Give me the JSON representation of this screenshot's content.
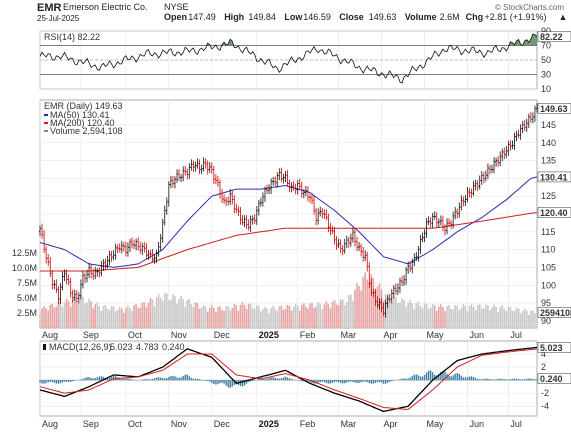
{
  "header": {
    "symbol": "EMR",
    "company": "Emerson Electric Co.",
    "exchange": "NYSE",
    "date": "25-Jul-2025",
    "copyright": "© StockCharts.com",
    "stats": [
      {
        "label": "Open",
        "value": "147.49"
      },
      {
        "label": "High",
        "value": "149.84"
      },
      {
        "label": "Low",
        "value": "146.59"
      },
      {
        "label": "Close",
        "value": "149.63"
      },
      {
        "label": "Volume",
        "value": "2.6M"
      },
      {
        "label": "Chg",
        "value": "+2.81 (+1.91%)"
      }
    ],
    "up_symbol": "▲"
  },
  "colors": {
    "price_up": "#111111",
    "price_down": "#cc0000",
    "ma50": "#2b2bb0",
    "ma200": "#cc2020",
    "volume_up": "#c8c8c8",
    "volume_down": "#e6a4a4",
    "rsi_fill": "#5a8a5a",
    "macd_line": "#000000",
    "macd_signal": "#d42020",
    "histogram": "#3a7fa8",
    "last_price_tag": "#111111"
  },
  "chart_data": [
    {
      "type": "line",
      "panel": "rsi",
      "legend": "RSI(14) 82.22",
      "ylim": [
        10,
        90
      ],
      "yticks": [
        10,
        30,
        50,
        70,
        90
      ],
      "ytick_labels": [
        "10",
        "30",
        "50",
        "70",
        "90"
      ],
      "overbought": 70,
      "oversold": 30,
      "last_value_label": "82.22",
      "x": [
        "Aug",
        "Sep",
        "Oct",
        "Nov",
        "Dec",
        "2025",
        "Feb",
        "Mar",
        "Apr",
        "May",
        "Jun",
        "Jul"
      ],
      "series": [
        {
          "name": "RSI(14)",
          "values": [
            55,
            40,
            58,
            62,
            73,
            38,
            66,
            40,
            24,
            66,
            60,
            82.22
          ]
        }
      ]
    },
    {
      "type": "line",
      "panel": "price",
      "legend": {
        "title": "EMR (Daily) 149.63",
        "items": [
          "MA(50) 130.41",
          "MA(200) 120.40",
          "Volume 2,594,108"
        ]
      },
      "ylim": [
        88,
        152
      ],
      "yticks": [
        90,
        95,
        100,
        105,
        110,
        115,
        120,
        125,
        130,
        135,
        140,
        145
      ],
      "ytick_labels": [
        "90",
        "95",
        "100",
        "105",
        "110",
        "115",
        "120",
        "125",
        "130",
        "135",
        "140",
        "145"
      ],
      "x": [
        "Aug",
        "Sep",
        "Oct",
        "Nov",
        "Dec",
        "2025",
        "Feb",
        "Mar",
        "Apr",
        "May",
        "Jun",
        "Jul"
      ],
      "last_value_labels": [
        "149.63",
        "130.41",
        "120.40"
      ],
      "series": [
        {
          "name": "EMR",
          "values": [
            [
              0,
              116
            ],
            [
              3,
              108
            ],
            [
              6,
              101
            ],
            [
              9,
              97
            ],
            [
              12,
              104
            ],
            [
              15,
              98
            ],
            [
              18,
              96
            ],
            [
              21,
              102
            ],
            [
              24,
              104
            ],
            [
              27,
              103
            ],
            [
              30,
              105
            ],
            [
              33,
              107
            ],
            [
              36,
              109
            ],
            [
              39,
              111
            ],
            [
              42,
              110
            ],
            [
              45,
              112
            ],
            [
              48,
              111
            ],
            [
              51,
              110
            ],
            [
              54,
              108
            ],
            [
              57,
              108
            ],
            [
              60,
              117
            ],
            [
              63,
              128
            ],
            [
              66,
              130
            ],
            [
              69,
              131
            ],
            [
              72,
              132
            ],
            [
              75,
              134
            ],
            [
              78,
              133
            ],
            [
              81,
              134
            ],
            [
              84,
              132
            ],
            [
              87,
              128
            ],
            [
              90,
              123
            ],
            [
              93,
              125
            ],
            [
              96,
              121
            ],
            [
              99,
              118
            ],
            [
              102,
              117
            ],
            [
              105,
              119
            ],
            [
              108,
              124
            ],
            [
              111,
              127
            ],
            [
              114,
              129
            ],
            [
              117,
              131
            ],
            [
              120,
              130
            ],
            [
              123,
              127
            ],
            [
              126,
              128
            ],
            [
              129,
              126
            ],
            [
              132,
              125
            ],
            [
              135,
              119
            ],
            [
              138,
              121
            ],
            [
              141,
              117
            ],
            [
              144,
              113
            ],
            [
              147,
              110
            ],
            [
              150,
              112
            ],
            [
              153,
              114
            ],
            [
              156,
              110
            ],
            [
              159,
              108
            ],
            [
              162,
              98
            ],
            [
              165,
              95
            ],
            [
              168,
              93
            ],
            [
              171,
              97
            ],
            [
              174,
              99
            ],
            [
              177,
              101
            ],
            [
              180,
              105
            ],
            [
              183,
              107
            ],
            [
              186,
              112
            ],
            [
              189,
              117
            ],
            [
              192,
              119
            ],
            [
              195,
              118
            ],
            [
              198,
              116
            ],
            [
              201,
              118
            ],
            [
              204,
              121
            ],
            [
              207,
              124
            ],
            [
              210,
              126
            ],
            [
              213,
              128
            ],
            [
              216,
              130
            ],
            [
              219,
              132
            ],
            [
              222,
              134
            ],
            [
              225,
              136
            ],
            [
              228,
              138
            ],
            [
              231,
              140
            ],
            [
              234,
              143
            ],
            [
              237,
              145
            ],
            [
              240,
              147
            ],
            [
              243,
              149.63
            ]
          ]
        },
        {
          "name": "MA(50)",
          "values": [
            [
              0,
              112
            ],
            [
              12,
              110
            ],
            [
              24,
              106
            ],
            [
              36,
              105
            ],
            [
              48,
              106
            ],
            [
              60,
              110
            ],
            [
              72,
              118
            ],
            [
              84,
              125
            ],
            [
              96,
              127
            ],
            [
              108,
              127
            ],
            [
              120,
              128
            ],
            [
              132,
              126
            ],
            [
              144,
              121
            ],
            [
              156,
              115
            ],
            [
              168,
              108
            ],
            [
              180,
              106
            ],
            [
              192,
              110
            ],
            [
              204,
              115
            ],
            [
              216,
              119
            ],
            [
              228,
              124
            ],
            [
              240,
              130
            ],
            [
              243,
              130.41
            ]
          ]
        },
        {
          "name": "MA(200)",
          "values": [
            [
              0,
              104
            ],
            [
              24,
              104
            ],
            [
              48,
              105
            ],
            [
              72,
              110
            ],
            [
              96,
              114
            ],
            [
              120,
              116
            ],
            [
              144,
              116
            ],
            [
              168,
              116
            ],
            [
              192,
              116
            ],
            [
              216,
              118
            ],
            [
              240,
              120.2
            ],
            [
              243,
              120.4
            ]
          ]
        },
        {
          "name": "Volume",
          "values": [
            [
              0,
              3.1
            ],
            [
              10,
              4.2
            ],
            [
              20,
              5.0
            ],
            [
              30,
              3.6
            ],
            [
              40,
              3.2
            ],
            [
              50,
              3.9
            ],
            [
              60,
              5.5
            ],
            [
              70,
              4.8
            ],
            [
              80,
              3.5
            ],
            [
              90,
              3.3
            ],
            [
              100,
              4.0
            ],
            [
              110,
              3.2
            ],
            [
              120,
              3.5
            ],
            [
              130,
              3.8
            ],
            [
              140,
              4.0
            ],
            [
              150,
              4.6
            ],
            [
              160,
              9.0
            ],
            [
              165,
              7.2
            ],
            [
              170,
              5.2
            ],
            [
              180,
              4.3
            ],
            [
              190,
              3.7
            ],
            [
              200,
              3.5
            ],
            [
              210,
              3.7
            ],
            [
              220,
              3.6
            ],
            [
              230,
              3.3
            ],
            [
              243,
              2.594108
            ]
          ]
        }
      ],
      "volume_axis": {
        "ylim": [
          0,
          38
        ],
        "ticks": [
          2.5,
          5.0,
          7.5,
          10.0,
          12.5
        ],
        "tick_labels": [
          "2.5M",
          "5.0M",
          "7.5M",
          "10.0M",
          "12.5M"
        ],
        "last_value_label": "2594108"
      }
    },
    {
      "type": "line",
      "panel": "macd",
      "legend": {
        "name": "MACD(12,26,9)",
        "value": "5.023",
        "signal": "4.783",
        "histogram": "0.240"
      },
      "ylim": [
        -5.5,
        6
      ],
      "yticks": [
        -4,
        -2,
        0,
        2,
        4
      ],
      "ytick_labels": [
        "-4",
        "-2",
        "",
        "2",
        "4"
      ],
      "last_value_labels": [
        "5.023",
        "0.240"
      ],
      "x": [
        "Aug",
        "Sep",
        "Oct",
        "Nov",
        "Dec",
        "2025",
        "Feb",
        "Mar",
        "Apr",
        "May",
        "Jun",
        "Jul"
      ],
      "series": [
        {
          "name": "MACD",
          "values": [
            [
              0,
              -1.5
            ],
            [
              12,
              -2.5
            ],
            [
              24,
              -1.0
            ],
            [
              36,
              0.8
            ],
            [
              48,
              0.5
            ],
            [
              60,
              2.0
            ],
            [
              72,
              4.8
            ],
            [
              84,
              3.5
            ],
            [
              96,
              -0.5
            ],
            [
              108,
              0.5
            ],
            [
              120,
              1.5
            ],
            [
              132,
              -0.5
            ],
            [
              144,
              -2.0
            ],
            [
              156,
              -3.2
            ],
            [
              168,
              -4.8
            ],
            [
              180,
              -4.0
            ],
            [
              192,
              0.0
            ],
            [
              204,
              3.0
            ],
            [
              216,
              4.0
            ],
            [
              228,
              4.5
            ],
            [
              243,
              5.023
            ]
          ]
        },
        {
          "name": "Signal",
          "values": [
            [
              0,
              -1.0
            ],
            [
              12,
              -2.0
            ],
            [
              24,
              -1.5
            ],
            [
              36,
              0.2
            ],
            [
              48,
              0.5
            ],
            [
              60,
              1.5
            ],
            [
              72,
              4.0
            ],
            [
              84,
              4.0
            ],
            [
              96,
              0.8
            ],
            [
              108,
              0.2
            ],
            [
              120,
              1.0
            ],
            [
              132,
              0.0
            ],
            [
              144,
              -1.5
            ],
            [
              156,
              -2.8
            ],
            [
              168,
              -4.2
            ],
            [
              180,
              -4.5
            ],
            [
              192,
              -1.5
            ],
            [
              204,
              2.0
            ],
            [
              216,
              3.8
            ],
            [
              228,
              4.3
            ],
            [
              243,
              4.783
            ]
          ]
        },
        {
          "name": "Histogram",
          "values": [
            [
              0,
              -0.5
            ],
            [
              12,
              -0.5
            ],
            [
              24,
              0.5
            ],
            [
              36,
              0.6
            ],
            [
              48,
              0.0
            ],
            [
              60,
              0.5
            ],
            [
              72,
              0.8
            ],
            [
              84,
              -0.5
            ],
            [
              96,
              -1.3
            ],
            [
              108,
              0.3
            ],
            [
              120,
              0.5
            ],
            [
              132,
              -0.5
            ],
            [
              144,
              -0.5
            ],
            [
              156,
              -0.4
            ],
            [
              168,
              -0.6
            ],
            [
              180,
              0.5
            ],
            [
              192,
              1.5
            ],
            [
              204,
              1.0
            ],
            [
              216,
              0.2
            ],
            [
              228,
              0.2
            ],
            [
              243,
              0.24
            ]
          ]
        }
      ]
    }
  ]
}
